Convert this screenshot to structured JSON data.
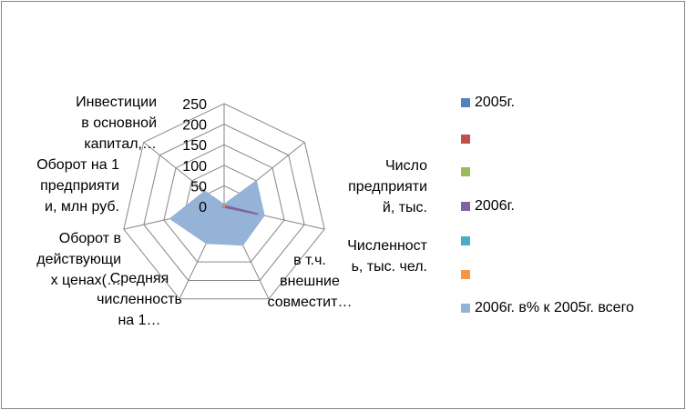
{
  "chart_data": {
    "type": "radar",
    "title": "",
    "categories": [
      [
        "Число",
        "предприяти",
        "й, тыс."
      ],
      [
        "Численност",
        "ь, тыс. чел."
      ],
      [
        "в т.ч.",
        "внешние",
        "совместит…"
      ],
      [
        "Средняя",
        "численность",
        "на 1…"
      ],
      [
        "Оборот в",
        "действующи",
        "х ценах(…"
      ],
      [
        "Оборот на 1",
        "предприяти",
        "и, млн руб."
      ],
      [
        "Инвестиции",
        "в основной",
        "капитал,…"
      ]
    ],
    "axis": {
      "min": 0,
      "max": 250,
      "ticks": [
        "0",
        "50",
        "100",
        "150",
        "200",
        "250"
      ]
    },
    "series": [
      {
        "name": "2005г.",
        "color": "#4F81BD",
        "values": [
          2,
          2,
          2,
          2,
          2,
          2,
          2
        ],
        "fill": false
      },
      {
        "name": "",
        "color": "#C0504D",
        "values": [
          2,
          2,
          2,
          2,
          2,
          2,
          2
        ],
        "fill": false
      },
      {
        "name": "",
        "color": "#9BBB59",
        "values": [
          1,
          1,
          1,
          1,
          1,
          1,
          1
        ],
        "fill": false
      },
      {
        "name": "2006г.",
        "color": "#8064A2",
        "values": [
          2,
          85,
          2,
          2,
          2,
          2,
          2
        ],
        "fill": false
      },
      {
        "name": "",
        "color": "#4BACC6",
        "values": [
          1,
          1,
          1,
          1,
          1,
          1,
          1
        ],
        "fill": false
      },
      {
        "name": "",
        "color": "#F79646",
        "values": [
          1,
          1,
          1,
          1,
          1,
          1,
          1
        ],
        "fill": false
      },
      {
        "name": "2006г. в% к 2005г. всего",
        "color": "#95B3D7",
        "values": [
          100,
          100,
          105,
          100,
          135,
          60,
          5
        ],
        "fill": true
      }
    ],
    "legend_position": "right"
  }
}
